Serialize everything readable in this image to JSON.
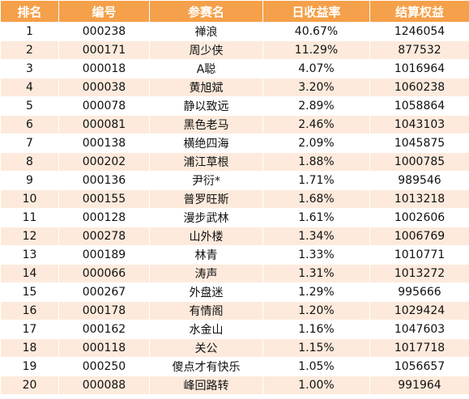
{
  "headers": {
    "rank": "排名",
    "code": "编号",
    "name": "参赛名",
    "daily_return": "日收益率",
    "equity": "结算权益"
  },
  "rows": [
    {
      "rank": "1",
      "code": "000238",
      "name": "禅浪",
      "daily_return": "40.67%",
      "equity": "1246054"
    },
    {
      "rank": "2",
      "code": "000171",
      "name": "周少侠",
      "daily_return": "11.29%",
      "equity": "877532"
    },
    {
      "rank": "3",
      "code": "000018",
      "name": "A聪",
      "daily_return": "4.07%",
      "equity": "1016964"
    },
    {
      "rank": "4",
      "code": "000038",
      "name": "黄旭斌",
      "daily_return": "3.20%",
      "equity": "1060238"
    },
    {
      "rank": "5",
      "code": "000078",
      "name": "静以致远",
      "daily_return": "2.89%",
      "equity": "1058864"
    },
    {
      "rank": "6",
      "code": "000081",
      "name": "黑色老马",
      "daily_return": "2.46%",
      "equity": "1043103"
    },
    {
      "rank": "7",
      "code": "000138",
      "name": "横绝四海",
      "daily_return": "2.09%",
      "equity": "1045875"
    },
    {
      "rank": "8",
      "code": "000202",
      "name": "浦江草根",
      "daily_return": "1.88%",
      "equity": "1000785"
    },
    {
      "rank": "9",
      "code": "000136",
      "name": "尹衍*",
      "daily_return": "1.71%",
      "equity": "989546"
    },
    {
      "rank": "10",
      "code": "000155",
      "name": "普罗旺斯",
      "daily_return": "1.68%",
      "equity": "1013218"
    },
    {
      "rank": "11",
      "code": "000128",
      "name": "漫步武林",
      "daily_return": "1.61%",
      "equity": "1002606"
    },
    {
      "rank": "12",
      "code": "000278",
      "name": "山外楼",
      "daily_return": "1.34%",
      "equity": "1006769"
    },
    {
      "rank": "13",
      "code": "000189",
      "name": "林青",
      "daily_return": "1.33%",
      "equity": "1010771"
    },
    {
      "rank": "14",
      "code": "000066",
      "name": "涛声",
      "daily_return": "1.31%",
      "equity": "1013272"
    },
    {
      "rank": "15",
      "code": "000267",
      "name": "外盘迷",
      "daily_return": "1.29%",
      "equity": "995666"
    },
    {
      "rank": "16",
      "code": "000178",
      "name": "有情阁",
      "daily_return": "1.20%",
      "equity": "1029424"
    },
    {
      "rank": "17",
      "code": "000162",
      "name": "水金山",
      "daily_return": "1.16%",
      "equity": "1047603"
    },
    {
      "rank": "18",
      "code": "000118",
      "name": "关公",
      "daily_return": "1.15%",
      "equity": "1017718"
    },
    {
      "rank": "19",
      "code": "000250",
      "name": "傻点才有快乐",
      "daily_return": "1.05%",
      "equity": "1056657"
    },
    {
      "rank": "20",
      "code": "000088",
      "name": "峰回路转",
      "daily_return": "1.00%",
      "equity": "991964"
    }
  ]
}
